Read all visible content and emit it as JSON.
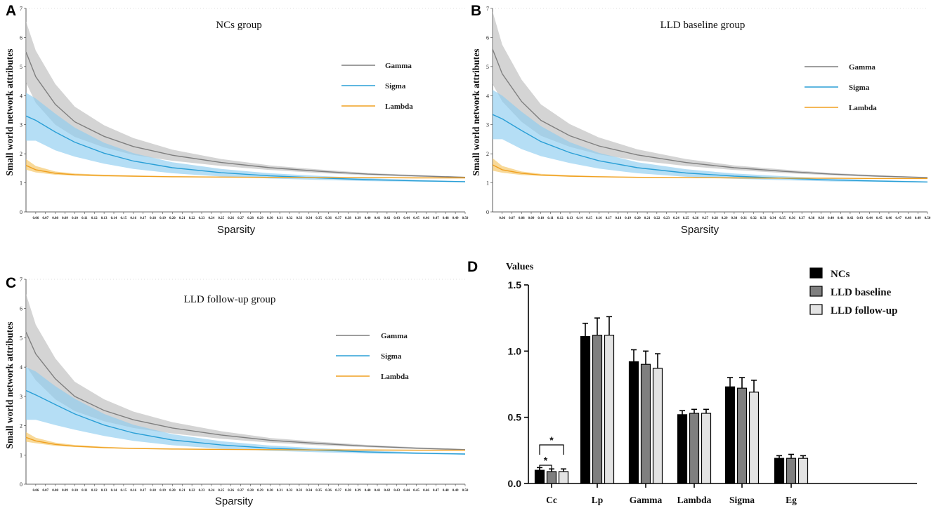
{
  "chart_data": [
    {
      "panel": "A",
      "type": "line",
      "title": "NCs group",
      "xlabel": "Sparsity",
      "ylabel": "Small world network attributes",
      "ylim": [
        0,
        7
      ],
      "yticks": [
        "0",
        "1",
        "2",
        "3",
        "4",
        "5",
        "6",
        "7"
      ],
      "xlim": [
        0.05,
        0.5
      ],
      "xtick_labels": [
        "0.06",
        "0.07",
        "0.08",
        "0.09",
        "0.10",
        "0.11",
        "0.12",
        "0.13",
        "0.14",
        "0.15",
        "0.16",
        "0.17",
        "0.18",
        "0.19",
        "0.20",
        "0.21",
        "0.22",
        "0.23",
        "0.24",
        "0.25",
        "0.26",
        "0.27",
        "0.28",
        "0.29",
        "0.30",
        "0.31",
        "0.32",
        "0.33",
        "0.34",
        "0.35",
        "0.36",
        "0.37",
        "0.38",
        "0.39",
        "0.40",
        "0.41",
        "0.42",
        "0.43",
        "0.44",
        "0.45",
        "0.46",
        "0.47",
        "0.48",
        "0.49",
        "0.50"
      ],
      "legend": [
        "Gamma",
        "Sigma",
        "Lambda"
      ],
      "series": [
        {
          "name": "Gamma",
          "color": "#7f7f7f",
          "band_color": "#bdbdbd",
          "x": [
            0.05,
            0.06,
            0.08,
            0.1,
            0.13,
            0.16,
            0.2,
            0.25,
            0.3,
            0.35,
            0.4,
            0.45,
            0.5
          ],
          "mean": [
            5.5,
            4.65,
            3.7,
            3.1,
            2.6,
            2.25,
            1.95,
            1.7,
            1.52,
            1.4,
            1.3,
            1.24,
            1.19
          ],
          "lower": [
            4.45,
            3.75,
            3.0,
            2.58,
            2.22,
            1.96,
            1.76,
            1.58,
            1.44,
            1.34,
            1.26,
            1.21,
            1.17
          ],
          "upper": [
            6.55,
            5.55,
            4.4,
            3.62,
            2.98,
            2.54,
            2.14,
            1.82,
            1.6,
            1.46,
            1.34,
            1.27,
            1.21
          ]
        },
        {
          "name": "Sigma",
          "color": "#2a9fd6",
          "band_color": "#8ecdf0",
          "x": [
            0.05,
            0.06,
            0.08,
            0.1,
            0.13,
            0.16,
            0.2,
            0.25,
            0.3,
            0.35,
            0.4,
            0.45,
            0.5
          ],
          "mean": [
            3.3,
            3.15,
            2.75,
            2.4,
            2.02,
            1.75,
            1.52,
            1.35,
            1.24,
            1.17,
            1.11,
            1.07,
            1.04
          ],
          "lower": [
            2.45,
            2.45,
            2.12,
            1.9,
            1.66,
            1.48,
            1.33,
            1.22,
            1.15,
            1.1,
            1.06,
            1.04,
            1.02
          ],
          "upper": [
            4.1,
            3.9,
            3.38,
            2.9,
            2.38,
            2.02,
            1.71,
            1.48,
            1.33,
            1.24,
            1.16,
            1.1,
            1.06
          ]
        },
        {
          "name": "Lambda",
          "color": "#f0a020",
          "band_color": "#f4c463",
          "x": [
            0.05,
            0.06,
            0.08,
            0.1,
            0.13,
            0.16,
            0.2,
            0.25,
            0.3,
            0.35,
            0.4,
            0.45,
            0.5
          ],
          "mean": [
            1.6,
            1.45,
            1.33,
            1.28,
            1.25,
            1.23,
            1.21,
            1.2,
            1.19,
            1.18,
            1.18,
            1.17,
            1.17
          ],
          "lower": [
            1.45,
            1.36,
            1.28,
            1.25,
            1.22,
            1.21,
            1.2,
            1.19,
            1.18,
            1.17,
            1.17,
            1.16,
            1.16
          ],
          "upper": [
            1.82,
            1.58,
            1.39,
            1.32,
            1.28,
            1.25,
            1.23,
            1.21,
            1.2,
            1.19,
            1.19,
            1.18,
            1.18
          ]
        }
      ]
    },
    {
      "panel": "B",
      "type": "line",
      "title": "LLD baseline group",
      "xlabel": "Sparsity",
      "ylabel": "Small world network attributes",
      "ylim": [
        0,
        7
      ],
      "yticks": [
        "0",
        "1",
        "2",
        "3",
        "4",
        "5",
        "6",
        "7"
      ],
      "xlim": [
        0.05,
        0.5
      ],
      "xtick_labels": [
        "0.06",
        "0.07",
        "0.08",
        "0.09",
        "0.10",
        "0.11",
        "0.12",
        "0.13",
        "0.14",
        "0.15",
        "0.16",
        "0.17",
        "0.18",
        "0.19",
        "0.20",
        "0.21",
        "0.22",
        "0.23",
        "0.24",
        "0.25",
        "0.26",
        "0.27",
        "0.28",
        "0.29",
        "0.30",
        "0.31",
        "0.32",
        "0.33",
        "0.34",
        "0.35",
        "0.36",
        "0.37",
        "0.38",
        "0.39",
        "0.40",
        "0.41",
        "0.42",
        "0.43",
        "0.44",
        "0.45",
        "0.46",
        "0.47",
        "0.48",
        "0.49",
        "0.50"
      ],
      "legend": [
        "Gamma",
        "Sigma",
        "Lambda"
      ],
      "series": [
        {
          "name": "Gamma",
          "color": "#7f7f7f",
          "band_color": "#bdbdbd",
          "x": [
            0.05,
            0.06,
            0.08,
            0.1,
            0.13,
            0.16,
            0.2,
            0.25,
            0.3,
            0.35,
            0.4,
            0.45,
            0.5
          ],
          "mean": [
            5.6,
            4.75,
            3.8,
            3.15,
            2.62,
            2.27,
            1.96,
            1.7,
            1.52,
            1.4,
            1.3,
            1.23,
            1.18
          ],
          "lower": [
            4.4,
            3.8,
            3.1,
            2.62,
            2.24,
            1.98,
            1.77,
            1.58,
            1.44,
            1.34,
            1.26,
            1.2,
            1.16
          ],
          "upper": [
            6.9,
            5.75,
            4.55,
            3.7,
            3.02,
            2.56,
            2.15,
            1.82,
            1.6,
            1.46,
            1.34,
            1.26,
            1.2
          ]
        },
        {
          "name": "Sigma",
          "color": "#2a9fd6",
          "band_color": "#8ecdf0",
          "x": [
            0.05,
            0.06,
            0.08,
            0.1,
            0.13,
            0.16,
            0.2,
            0.25,
            0.3,
            0.35,
            0.4,
            0.45,
            0.5
          ],
          "mean": [
            3.35,
            3.2,
            2.8,
            2.42,
            2.04,
            1.76,
            1.52,
            1.34,
            1.23,
            1.16,
            1.1,
            1.06,
            1.03
          ],
          "lower": [
            2.5,
            2.5,
            2.16,
            1.92,
            1.68,
            1.49,
            1.33,
            1.21,
            1.14,
            1.09,
            1.05,
            1.03,
            1.01
          ],
          "upper": [
            4.2,
            4.0,
            3.45,
            2.95,
            2.4,
            2.03,
            1.71,
            1.47,
            1.32,
            1.23,
            1.15,
            1.09,
            1.05
          ]
        },
        {
          "name": "Lambda",
          "color": "#f0a020",
          "band_color": "#f4c463",
          "x": [
            0.05,
            0.06,
            0.08,
            0.1,
            0.13,
            0.16,
            0.2,
            0.25,
            0.3,
            0.35,
            0.4,
            0.45,
            0.5
          ],
          "mean": [
            1.62,
            1.45,
            1.33,
            1.27,
            1.23,
            1.21,
            1.19,
            1.18,
            1.17,
            1.16,
            1.16,
            1.15,
            1.15
          ],
          "lower": [
            1.42,
            1.35,
            1.27,
            1.24,
            1.21,
            1.2,
            1.18,
            1.17,
            1.16,
            1.15,
            1.15,
            1.14,
            1.14
          ],
          "upper": [
            1.85,
            1.58,
            1.39,
            1.31,
            1.26,
            1.23,
            1.21,
            1.19,
            1.18,
            1.17,
            1.17,
            1.16,
            1.16
          ]
        }
      ]
    },
    {
      "panel": "C",
      "type": "line",
      "title": "LLD follow-up group",
      "xlabel": "Sparsity",
      "ylabel": "Small world network attributes",
      "ylim": [
        0,
        7
      ],
      "yticks": [
        "0",
        "1",
        "2",
        "3",
        "4",
        "5",
        "6",
        "7"
      ],
      "xlim": [
        0.05,
        0.5
      ],
      "xtick_labels": [
        "0.06",
        "0.07",
        "0.08",
        "0.09",
        "0.10",
        "0.11",
        "0.12",
        "0.13",
        "0.14",
        "0.15",
        "0.16",
        "0.17",
        "0.18",
        "0.19",
        "0.20",
        "0.21",
        "0.22",
        "0.23",
        "0.24",
        "0.25",
        "0.26",
        "0.27",
        "0.28",
        "0.29",
        "0.30",
        "0.31",
        "0.32",
        "0.33",
        "0.34",
        "0.35",
        "0.36",
        "0.37",
        "0.38",
        "0.39",
        "0.40",
        "0.41",
        "0.42",
        "0.43",
        "0.44",
        "0.45",
        "0.46",
        "0.47",
        "0.48",
        "0.49",
        "0.50"
      ],
      "legend": [
        "Gamma",
        "Sigma",
        "Lambda"
      ],
      "series": [
        {
          "name": "Gamma",
          "color": "#7f7f7f",
          "band_color": "#bdbdbd",
          "x": [
            0.05,
            0.06,
            0.08,
            0.1,
            0.13,
            0.16,
            0.2,
            0.25,
            0.3,
            0.35,
            0.4,
            0.45,
            0.5
          ],
          "mean": [
            5.2,
            4.45,
            3.6,
            3.0,
            2.52,
            2.2,
            1.92,
            1.68,
            1.5,
            1.39,
            1.3,
            1.23,
            1.18
          ],
          "lower": [
            4.05,
            3.55,
            2.9,
            2.5,
            2.15,
            1.92,
            1.73,
            1.55,
            1.42,
            1.33,
            1.26,
            1.2,
            1.16
          ],
          "upper": [
            6.5,
            5.45,
            4.3,
            3.5,
            2.9,
            2.48,
            2.12,
            1.81,
            1.58,
            1.45,
            1.34,
            1.26,
            1.2
          ]
        },
        {
          "name": "Sigma",
          "color": "#2a9fd6",
          "band_color": "#8ecdf0",
          "x": [
            0.05,
            0.06,
            0.08,
            0.1,
            0.13,
            0.16,
            0.2,
            0.25,
            0.3,
            0.35,
            0.4,
            0.45,
            0.5
          ],
          "mean": [
            3.2,
            3.05,
            2.72,
            2.4,
            2.02,
            1.75,
            1.51,
            1.34,
            1.23,
            1.16,
            1.1,
            1.06,
            1.03
          ],
          "lower": [
            2.2,
            2.2,
            2.02,
            1.86,
            1.65,
            1.48,
            1.33,
            1.21,
            1.14,
            1.09,
            1.05,
            1.03,
            1.01
          ],
          "upper": [
            4.0,
            3.85,
            3.35,
            2.92,
            2.4,
            2.03,
            1.71,
            1.47,
            1.32,
            1.23,
            1.15,
            1.09,
            1.05
          ]
        },
        {
          "name": "Lambda",
          "color": "#f0a020",
          "band_color": "#f4c463",
          "x": [
            0.05,
            0.06,
            0.08,
            0.1,
            0.13,
            0.16,
            0.2,
            0.25,
            0.3,
            0.35,
            0.4,
            0.45,
            0.5
          ],
          "mean": [
            1.6,
            1.48,
            1.36,
            1.3,
            1.25,
            1.22,
            1.2,
            1.19,
            1.18,
            1.17,
            1.17,
            1.16,
            1.16
          ],
          "lower": [
            1.45,
            1.4,
            1.31,
            1.27,
            1.23,
            1.21,
            1.19,
            1.18,
            1.17,
            1.16,
            1.16,
            1.15,
            1.15
          ],
          "upper": [
            1.78,
            1.59,
            1.42,
            1.34,
            1.28,
            1.24,
            1.22,
            1.2,
            1.19,
            1.18,
            1.18,
            1.17,
            1.17
          ]
        }
      ]
    },
    {
      "panel": "D",
      "type": "bar",
      "ylabel": "Values",
      "ylim": [
        0,
        1.5
      ],
      "yticks": [
        "0.0",
        "0.5",
        "1.0",
        "1.5"
      ],
      "categories": [
        "Cc",
        "Lp",
        "Gamma",
        "Lambda",
        "Sigma",
        "Eg"
      ],
      "series": [
        {
          "name": "NCs",
          "color": "#000000",
          "values": [
            0.1,
            1.11,
            0.92,
            0.52,
            0.73,
            0.19
          ],
          "errors": [
            0.02,
            0.1,
            0.09,
            0.03,
            0.07,
            0.02
          ]
        },
        {
          "name": "LLD baseline",
          "color": "#7f7f7f",
          "values": [
            0.09,
            1.12,
            0.9,
            0.53,
            0.72,
            0.19
          ],
          "errors": [
            0.02,
            0.13,
            0.1,
            0.03,
            0.08,
            0.03
          ]
        },
        {
          "name": "LLD follow-up",
          "color": "#e3e3e3",
          "values": [
            0.09,
            1.12,
            0.87,
            0.53,
            0.69,
            0.19
          ],
          "errors": [
            0.02,
            0.14,
            0.11,
            0.03,
            0.09,
            0.02
          ]
        }
      ],
      "significance": [
        {
          "category": "Cc",
          "from": "NCs",
          "to": "LLD baseline",
          "label": "*"
        },
        {
          "category": "Cc",
          "from": "NCs",
          "to": "LLD follow-up",
          "label": "*"
        }
      ]
    }
  ]
}
